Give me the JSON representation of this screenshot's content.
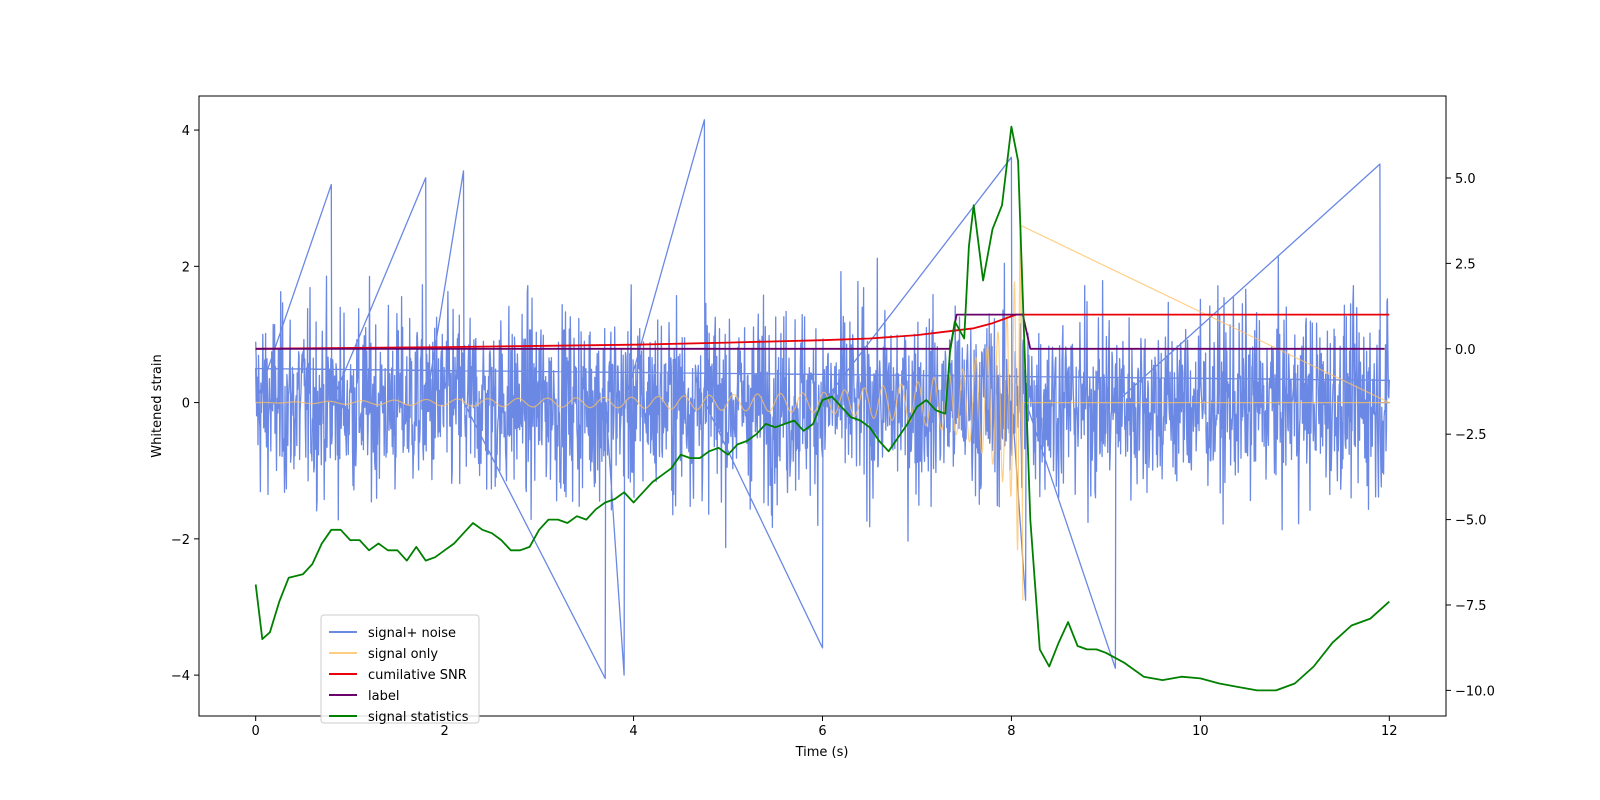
{
  "chart_data": {
    "type": "line",
    "title": "",
    "xlabel": "Time (s)",
    "ylabel": "Whitened strain",
    "xlim": [
      -0.6,
      12.6
    ],
    "ylim": [
      -4.6,
      4.5
    ],
    "y2lim": [
      -10.75,
      7.4
    ],
    "x_ticks": [
      0,
      2,
      4,
      6,
      8,
      10,
      12
    ],
    "y_ticks": [
      -4,
      -2,
      0,
      2,
      4
    ],
    "y2_ticks": [
      -10.0,
      -7.5,
      -5.0,
      -2.5,
      0.0,
      2.5,
      5.0
    ],
    "y2_tick_labels": [
      "−10.0",
      "−7.5",
      "−5.0",
      "−2.5",
      "0.0",
      "2.5",
      "5.0"
    ],
    "y_tick_labels": [
      "−4",
      "−2",
      "0",
      "2",
      "4"
    ],
    "x_tick_labels": [
      "0",
      "2",
      "4",
      "6",
      "8",
      "10",
      "12"
    ],
    "grid": false,
    "legend_position": "bottom-left",
    "series": [
      {
        "name": "signal+ noise",
        "axis": "left",
        "color": "#6a88e4",
        "style": "dense noise, amplitude ~±2 typical with spikes to ±4, spike to 4.15 at x≈4.75, peak 3.6 near x≈8, dip -4.05 near x≈3.7 and -3.9 near x≈9.1",
        "x_range": [
          0,
          12
        ],
        "points": [
          [
            0,
            0.5
          ],
          [
            0.8,
            3.2
          ],
          [
            1.8,
            3.3
          ],
          [
            2.2,
            3.4
          ],
          [
            3.7,
            -4.05
          ],
          [
            3.9,
            -4.0
          ],
          [
            4.75,
            4.15
          ],
          [
            6.0,
            -3.6
          ],
          [
            8.0,
            3.6
          ],
          [
            8.15,
            -2.9
          ],
          [
            9.1,
            -3.9
          ],
          [
            11.9,
            3.5
          ],
          [
            12,
            0.0
          ]
        ]
      },
      {
        "name": "signal only",
        "axis": "left",
        "color": "#ffc060",
        "style": "chirp oscillation growing in amplitude until merger at x≈8.1, zero afterwards",
        "x_range": [
          0,
          12
        ],
        "points": [
          [
            0,
            0.0
          ],
          [
            2,
            0.05
          ],
          [
            4,
            0.08
          ],
          [
            6,
            0.15
          ],
          [
            7,
            0.3
          ],
          [
            7.5,
            0.5
          ],
          [
            7.8,
            0.9
          ],
          [
            8.0,
            1.4
          ],
          [
            8.1,
            2.6
          ],
          [
            8.12,
            -2.9
          ],
          [
            8.2,
            0.0
          ],
          [
            12,
            0.0
          ]
        ]
      },
      {
        "name": "cumilative SNR",
        "axis": "right",
        "color": "#e8000b",
        "x": [
          0,
          2,
          4,
          5,
          6,
          6.5,
          7,
          7.3,
          7.6,
          7.8,
          7.95,
          8.05,
          8.12,
          8.2,
          9,
          10,
          11,
          12
        ],
        "values": [
          0.0,
          0.05,
          0.12,
          0.18,
          0.25,
          0.3,
          0.4,
          0.5,
          0.6,
          0.75,
          0.9,
          1.0,
          1.0,
          1.0,
          1.0,
          1.0,
          1.0,
          1.0
        ]
      },
      {
        "name": "label",
        "axis": "right",
        "color": "#6a006a",
        "x": [
          0,
          7.35,
          7.42,
          8.12,
          8.2,
          11.95
        ],
        "values": [
          0.0,
          0.0,
          1.0,
          1.0,
          0.0,
          0.0
        ]
      },
      {
        "name": "signal statistics",
        "axis": "right",
        "color": "#008000",
        "x": [
          0,
          0.07,
          0.15,
          0.25,
          0.35,
          0.5,
          0.6,
          0.7,
          0.8,
          0.9,
          1.0,
          1.1,
          1.2,
          1.3,
          1.4,
          1.5,
          1.6,
          1.7,
          1.8,
          1.9,
          2.0,
          2.1,
          2.2,
          2.3,
          2.4,
          2.5,
          2.6,
          2.7,
          2.8,
          2.9,
          3.0,
          3.1,
          3.2,
          3.3,
          3.4,
          3.5,
          3.6,
          3.7,
          3.8,
          3.9,
          4.0,
          4.1,
          4.2,
          4.3,
          4.4,
          4.5,
          4.6,
          4.7,
          4.8,
          4.9,
          5.0,
          5.1,
          5.2,
          5.3,
          5.4,
          5.5,
          5.6,
          5.7,
          5.8,
          5.9,
          6.0,
          6.1,
          6.2,
          6.3,
          6.4,
          6.5,
          6.6,
          6.7,
          6.8,
          6.9,
          7.0,
          7.1,
          7.2,
          7.3,
          7.35,
          7.4,
          7.5,
          7.55,
          7.6,
          7.7,
          7.8,
          7.9,
          8.0,
          8.07,
          8.12,
          8.2,
          8.3,
          8.4,
          8.5,
          8.6,
          8.7,
          8.8,
          8.9,
          9.0,
          9.2,
          9.4,
          9.6,
          9.8,
          10.0,
          10.2,
          10.4,
          10.6,
          10.8,
          11.0,
          11.2,
          11.4,
          11.6,
          11.8,
          12.0
        ],
        "values": [
          -6.9,
          -8.5,
          -8.3,
          -7.4,
          -6.7,
          -6.6,
          -6.3,
          -5.7,
          -5.3,
          -5.3,
          -5.6,
          -5.6,
          -5.9,
          -5.7,
          -5.9,
          -5.9,
          -6.2,
          -5.8,
          -6.2,
          -6.1,
          -5.9,
          -5.7,
          -5.4,
          -5.1,
          -5.3,
          -5.4,
          -5.6,
          -5.9,
          -5.9,
          -5.8,
          -5.3,
          -5.0,
          -5.0,
          -5.1,
          -4.9,
          -5.0,
          -4.7,
          -4.5,
          -4.4,
          -4.2,
          -4.5,
          -4.2,
          -3.9,
          -3.7,
          -3.5,
          -3.1,
          -3.2,
          -3.2,
          -3.0,
          -2.9,
          -3.1,
          -2.8,
          -2.7,
          -2.5,
          -2.2,
          -2.3,
          -2.2,
          -2.1,
          -2.4,
          -2.2,
          -1.5,
          -1.4,
          -1.7,
          -2.0,
          -2.1,
          -2.3,
          -2.7,
          -3.0,
          -2.6,
          -2.2,
          -1.7,
          -1.5,
          -1.8,
          -1.9,
          -0.1,
          0.8,
          0.3,
          3.0,
          4.2,
          2.0,
          3.5,
          4.2,
          6.5,
          5.5,
          1.5,
          -5.0,
          -8.8,
          -9.3,
          -8.6,
          -8.0,
          -8.7,
          -8.8,
          -8.8,
          -8.9,
          -9.2,
          -9.6,
          -9.7,
          -9.6,
          -9.65,
          -9.8,
          -9.9,
          -10.0,
          -10.0,
          -9.8,
          -9.3,
          -8.6,
          -8.1,
          -7.9,
          -7.4
        ]
      }
    ]
  }
}
